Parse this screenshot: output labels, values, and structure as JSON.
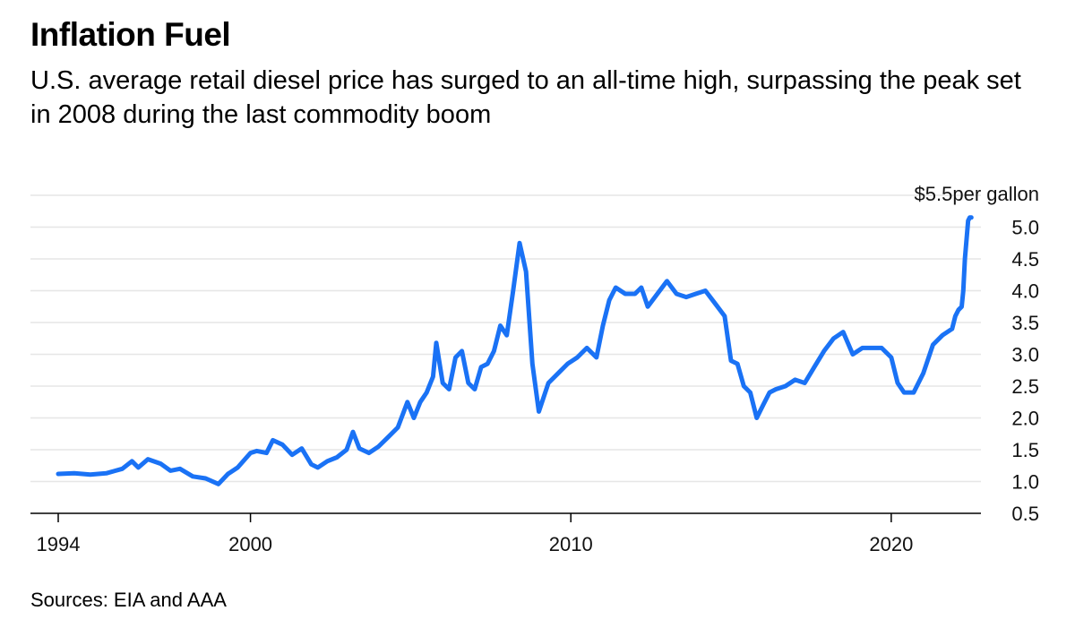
{
  "header": {
    "title": "Inflation Fuel",
    "subtitle": "U.S. average retail diesel price has surged to an all-time high, surpassing the peak set in 2008 during the last commodity boom"
  },
  "footer": {
    "source": "Sources: EIA and AAA"
  },
  "colors": {
    "line": "#1a72f5",
    "grid": "#e6e6e6",
    "axis": "#000000"
  },
  "chart_data": {
    "type": "line",
    "title": "Inflation Fuel",
    "xlabel": "",
    "ylabel": "$ per gallon",
    "y_top_label": "$5.5",
    "y_unit_label": "per gallon",
    "xlim": [
      1994,
      2022.8
    ],
    "ylim": [
      0.5,
      5.5
    ],
    "x_ticks": [
      1994,
      2000,
      2010,
      2020
    ],
    "x_tick_labels": [
      "1994",
      "2000",
      "2010",
      "2020"
    ],
    "y_ticks": [
      0.5,
      1.0,
      1.5,
      2.0,
      2.5,
      3.0,
      3.5,
      4.0,
      4.5,
      5.0
    ],
    "y_tick_labels": [
      "0.5",
      "1.0",
      "1.5",
      "2.0",
      "2.5",
      "3.0",
      "3.5",
      "4.0",
      "4.5",
      "5.0"
    ],
    "grid": true,
    "legend": "none",
    "series": [
      {
        "name": "U.S. average retail diesel price",
        "x": [
          1994.0,
          1994.5,
          1995.0,
          1995.5,
          1996.0,
          1996.3,
          1996.5,
          1996.8,
          1997.2,
          1997.5,
          1997.8,
          1998.2,
          1998.6,
          1999.0,
          1999.3,
          1999.6,
          2000.0,
          2000.2,
          2000.5,
          2000.7,
          2001.0,
          2001.3,
          2001.6,
          2001.9,
          2002.1,
          2002.4,
          2002.7,
          2003.0,
          2003.2,
          2003.4,
          2003.7,
          2004.0,
          2004.3,
          2004.6,
          2004.9,
          2005.1,
          2005.3,
          2005.5,
          2005.7,
          2005.8,
          2006.0,
          2006.2,
          2006.4,
          2006.6,
          2006.8,
          2007.0,
          2007.2,
          2007.4,
          2007.6,
          2007.8,
          2008.0,
          2008.2,
          2008.4,
          2008.6,
          2008.8,
          2009.0,
          2009.3,
          2009.6,
          2009.9,
          2010.2,
          2010.5,
          2010.8,
          2011.0,
          2011.2,
          2011.4,
          2011.7,
          2012.0,
          2012.2,
          2012.4,
          2012.7,
          2013.0,
          2013.3,
          2013.6,
          2013.9,
          2014.2,
          2014.5,
          2014.8,
          2015.0,
          2015.2,
          2015.4,
          2015.6,
          2015.8,
          2016.0,
          2016.2,
          2016.4,
          2016.7,
          2017.0,
          2017.3,
          2017.6,
          2017.9,
          2018.2,
          2018.5,
          2018.8,
          2019.1,
          2019.4,
          2019.7,
          2020.0,
          2020.2,
          2020.4,
          2020.7,
          2021.0,
          2021.3,
          2021.6,
          2021.9,
          2022.0,
          2022.1,
          2022.2,
          2022.25,
          2022.3,
          2022.35,
          2022.4,
          2022.45,
          2022.5
        ],
        "values": [
          1.12,
          1.13,
          1.11,
          1.13,
          1.2,
          1.32,
          1.22,
          1.35,
          1.28,
          1.17,
          1.2,
          1.08,
          1.05,
          0.96,
          1.12,
          1.22,
          1.45,
          1.48,
          1.45,
          1.65,
          1.58,
          1.42,
          1.52,
          1.27,
          1.22,
          1.32,
          1.38,
          1.5,
          1.78,
          1.52,
          1.45,
          1.55,
          1.7,
          1.85,
          2.25,
          2.0,
          2.25,
          2.4,
          2.65,
          3.18,
          2.55,
          2.45,
          2.95,
          3.05,
          2.55,
          2.45,
          2.8,
          2.85,
          3.05,
          3.45,
          3.3,
          4.0,
          4.75,
          4.3,
          2.85,
          2.1,
          2.55,
          2.7,
          2.85,
          2.95,
          3.1,
          2.95,
          3.45,
          3.85,
          4.05,
          3.95,
          3.95,
          4.05,
          3.75,
          3.95,
          4.15,
          3.95,
          3.9,
          3.95,
          4.0,
          3.8,
          3.6,
          2.9,
          2.85,
          2.5,
          2.4,
          2.0,
          2.2,
          2.4,
          2.45,
          2.5,
          2.6,
          2.55,
          2.8,
          3.05,
          3.25,
          3.35,
          3.0,
          3.1,
          3.1,
          3.1,
          2.95,
          2.55,
          2.4,
          2.4,
          2.7,
          3.15,
          3.3,
          3.4,
          3.6,
          3.7,
          3.75,
          4.0,
          4.5,
          4.8,
          5.1,
          5.15,
          5.15
        ]
      }
    ]
  }
}
